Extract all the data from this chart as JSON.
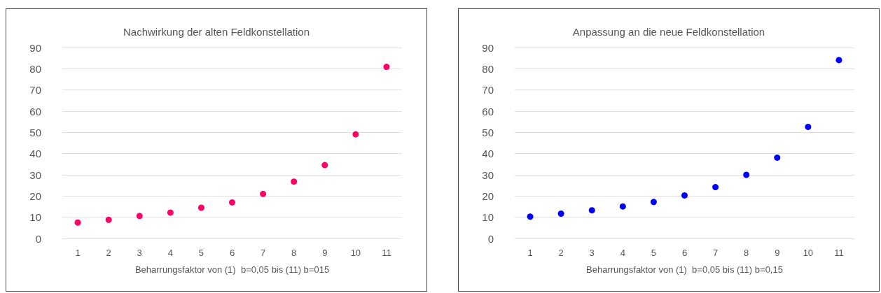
{
  "chart_data": [
    {
      "type": "scatter",
      "title": "Nachwirkung der alten Feldkonstellation",
      "xlabel": "Beharrungsfaktor von (1)  b=0,05 bis (11) b=015",
      "categories": [
        "1",
        "2",
        "3",
        "4",
        "5",
        "6",
        "7",
        "8",
        "9",
        "10",
        "11"
      ],
      "series": [
        {
          "color": "#ff0066",
          "values": [
            7.5,
            8.8,
            10.6,
            12.2,
            14.5,
            17.0,
            21.0,
            26.8,
            34.6,
            49.1,
            80.9
          ]
        }
      ],
      "ylim": [
        0,
        90
      ],
      "yticks": [
        0,
        10,
        20,
        30,
        40,
        50,
        60,
        70,
        80,
        90
      ],
      "grid": "y",
      "marker": "circle"
    },
    {
      "type": "scatter",
      "title": "Anpassung an die neue Feldkonstellation",
      "xlabel": "Beharrungsfaktor von (1)  b=0,05 bis (11) b=0,15",
      "categories": [
        "1",
        "2",
        "3",
        "4",
        "5",
        "6",
        "7",
        "8",
        "9",
        "10",
        "11"
      ],
      "series": [
        {
          "color": "#0000ff",
          "values": [
            10.3,
            11.7,
            13.3,
            15.1,
            17.2,
            20.3,
            24.2,
            30.0,
            38.1,
            52.6,
            84.1
          ]
        }
      ],
      "ylim": [
        0,
        90
      ],
      "yticks": [
        0,
        10,
        20,
        30,
        40,
        50,
        60,
        70,
        80,
        90
      ],
      "grid": "y",
      "marker": "circle"
    }
  ]
}
